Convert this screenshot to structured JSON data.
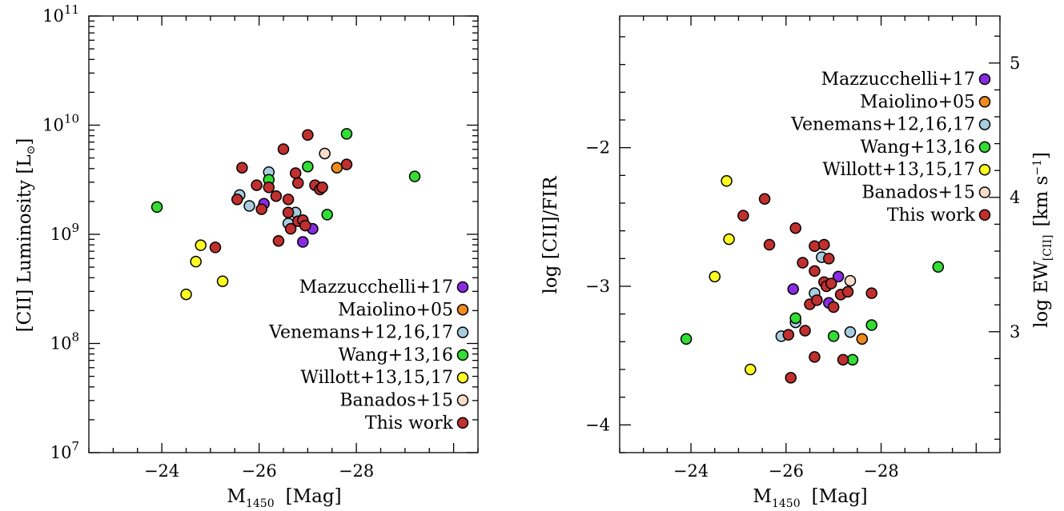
{
  "chart_data": [
    {
      "type": "scatter",
      "xlabel": "M",
      "xlabel_sub": "1450",
      "xlabel_unit": "[Mag]",
      "ylabel": "[CII] Luminosity [L",
      "ylabel_symbol": "⊙",
      "ylabel_close": "]",
      "xlim": [
        -22.5,
        -30.5
      ],
      "ylim": [
        7,
        11
      ],
      "yscale": "log",
      "xticks": [
        -24,
        -26,
        -28
      ],
      "xtick_labels": [
        "−24",
        "−26",
        "−28"
      ],
      "yticks": [
        7,
        8,
        9,
        10,
        11
      ],
      "ytick_bases": [
        "10",
        "10",
        "10",
        "10",
        "10"
      ],
      "ytick_exps": [
        "7",
        "8",
        "9",
        "10",
        "11"
      ],
      "legend_position": "bottom-right",
      "series": [
        {
          "name": "Mazzucchelli+17",
          "color": "#8a2be2",
          "points": [
            [
              -26.1,
              9.28
            ],
            [
              -26.9,
              8.93
            ],
            [
              -27.1,
              9.05
            ]
          ]
        },
        {
          "name": "Maiolino+05",
          "color": "#ee8a1e",
          "points": [
            [
              -27.6,
              9.61
            ]
          ]
        },
        {
          "name": "Venemans+12,16,17",
          "color": "#a8cde0",
          "points": [
            [
              -25.6,
              9.36
            ],
            [
              -25.8,
              9.26
            ],
            [
              -26.2,
              9.57
            ],
            [
              -26.6,
              9.1
            ],
            [
              -26.75,
              9.2
            ]
          ]
        },
        {
          "name": "Wang+13,16",
          "color": "#33dd33",
          "points": [
            [
              -23.9,
              9.25
            ],
            [
              -26.2,
              9.5
            ],
            [
              -27.0,
              9.62
            ],
            [
              -27.4,
              9.18
            ],
            [
              -27.8,
              9.92
            ],
            [
              -29.2,
              9.53
            ]
          ]
        },
        {
          "name": "Willott+13,15,17",
          "color": "#ffff22",
          "points": [
            [
              -24.5,
              8.45
            ],
            [
              -24.7,
              8.75
            ],
            [
              -24.8,
              8.9
            ],
            [
              -25.25,
              8.57
            ]
          ]
        },
        {
          "name": "Banados+15",
          "color": "#f8dccb",
          "points": [
            [
              -27.35,
              9.74
            ]
          ]
        },
        {
          "name": "This work",
          "color": "#c0302f",
          "points": [
            [
              -25.1,
              8.88
            ],
            [
              -25.55,
              9.32
            ],
            [
              -25.65,
              9.61
            ],
            [
              -25.95,
              9.45
            ],
            [
              -26.05,
              9.23
            ],
            [
              -26.2,
              9.43
            ],
            [
              -26.35,
              9.35
            ],
            [
              -26.4,
              8.94
            ],
            [
              -26.5,
              9.78
            ],
            [
              -26.6,
              9.2
            ],
            [
              -26.6,
              9.32
            ],
            [
              -26.65,
              9.05
            ],
            [
              -26.75,
              9.56
            ],
            [
              -26.8,
              9.47
            ],
            [
              -26.8,
              9.12
            ],
            [
              -26.9,
              9.13
            ],
            [
              -26.95,
              9.08
            ],
            [
              -27.0,
              9.91
            ],
            [
              -27.15,
              9.45
            ],
            [
              -27.25,
              9.41
            ],
            [
              -27.3,
              9.43
            ],
            [
              -27.8,
              9.64
            ]
          ]
        }
      ]
    },
    {
      "type": "scatter",
      "xlabel": "M",
      "xlabel_sub": "1450",
      "xlabel_unit": "[Mag]",
      "ylabel": "log [CII]/FIR",
      "ylabel_right": "log EW",
      "ylabel_right_sub": "[CII]",
      "ylabel_right_unit": "[km s",
      "ylabel_right_exp": "−1",
      "ylabel_right_close": "]",
      "xlim": [
        -22.5,
        -30.5
      ],
      "ylim": [
        -4.2,
        -1.05
      ],
      "right_ylim": [
        2.1,
        5.35
      ],
      "xticks": [
        -24,
        -26,
        -28
      ],
      "xtick_labels": [
        "−24",
        "−26",
        "−28"
      ],
      "yticks": [
        -4,
        -3,
        -2
      ],
      "ytick_labels": [
        "−4",
        "−3",
        "−2"
      ],
      "right_yticks": [
        3,
        4,
        5
      ],
      "right_ytick_labels": [
        "3",
        "4",
        "5"
      ],
      "legend_position": "top-right",
      "series": [
        {
          "name": "Mazzucchelli+17",
          "color": "#8a2be2",
          "points": [
            [
              -26.15,
              -3.02
            ],
            [
              -27.1,
              -2.93
            ],
            [
              -26.9,
              -3.12
            ]
          ]
        },
        {
          "name": "Maiolino+05",
          "color": "#ee8a1e",
          "points": [
            [
              -27.6,
              -3.38
            ]
          ]
        },
        {
          "name": "Venemans+12,16,17",
          "color": "#a8cde0",
          "points": [
            [
              -26.2,
              -3.26
            ],
            [
              -25.9,
              -3.36
            ],
            [
              -26.75,
              -2.79
            ],
            [
              -26.6,
              -3.05
            ],
            [
              -27.35,
              -3.33
            ]
          ]
        },
        {
          "name": "Wang+13,16",
          "color": "#33dd33",
          "points": [
            [
              -23.9,
              -3.38
            ],
            [
              -26.2,
              -3.23
            ],
            [
              -27.0,
              -3.36
            ],
            [
              -27.4,
              -3.53
            ],
            [
              -27.8,
              -3.28
            ],
            [
              -29.2,
              -2.86
            ]
          ]
        },
        {
          "name": "Willott+13,15,17",
          "color": "#ffff22",
          "points": [
            [
              -24.75,
              -2.24
            ],
            [
              -24.8,
              -2.66
            ],
            [
              -24.5,
              -2.93
            ],
            [
              -25.25,
              -3.6
            ]
          ]
        },
        {
          "name": "Banados+15",
          "color": "#f8dccb",
          "points": [
            [
              -27.35,
              -2.96
            ]
          ]
        },
        {
          "name": "This work",
          "color": "#c0302f",
          "points": [
            [
              -25.1,
              -2.49
            ],
            [
              -25.55,
              -2.37
            ],
            [
              -25.65,
              -2.7
            ],
            [
              -26.2,
              -2.58
            ],
            [
              -26.35,
              -2.83
            ],
            [
              -26.4,
              -3.32
            ],
            [
              -26.05,
              -3.35
            ],
            [
              -26.1,
              -3.66
            ],
            [
              -26.5,
              -3.13
            ],
            [
              -26.6,
              -2.71
            ],
            [
              -26.6,
              -2.89
            ],
            [
              -26.65,
              -3.1
            ],
            [
              -26.8,
              -2.7
            ],
            [
              -26.8,
              -2.97
            ],
            [
              -26.85,
              -3.0
            ],
            [
              -26.9,
              -2.8
            ],
            [
              -26.95,
              -2.98
            ],
            [
              -27.0,
              -3.15
            ],
            [
              -26.6,
              -3.51
            ],
            [
              -27.15,
              -3.06
            ],
            [
              -27.2,
              -3.53
            ],
            [
              -27.3,
              -3.04
            ],
            [
              -27.8,
              -3.05
            ]
          ]
        }
      ]
    }
  ]
}
